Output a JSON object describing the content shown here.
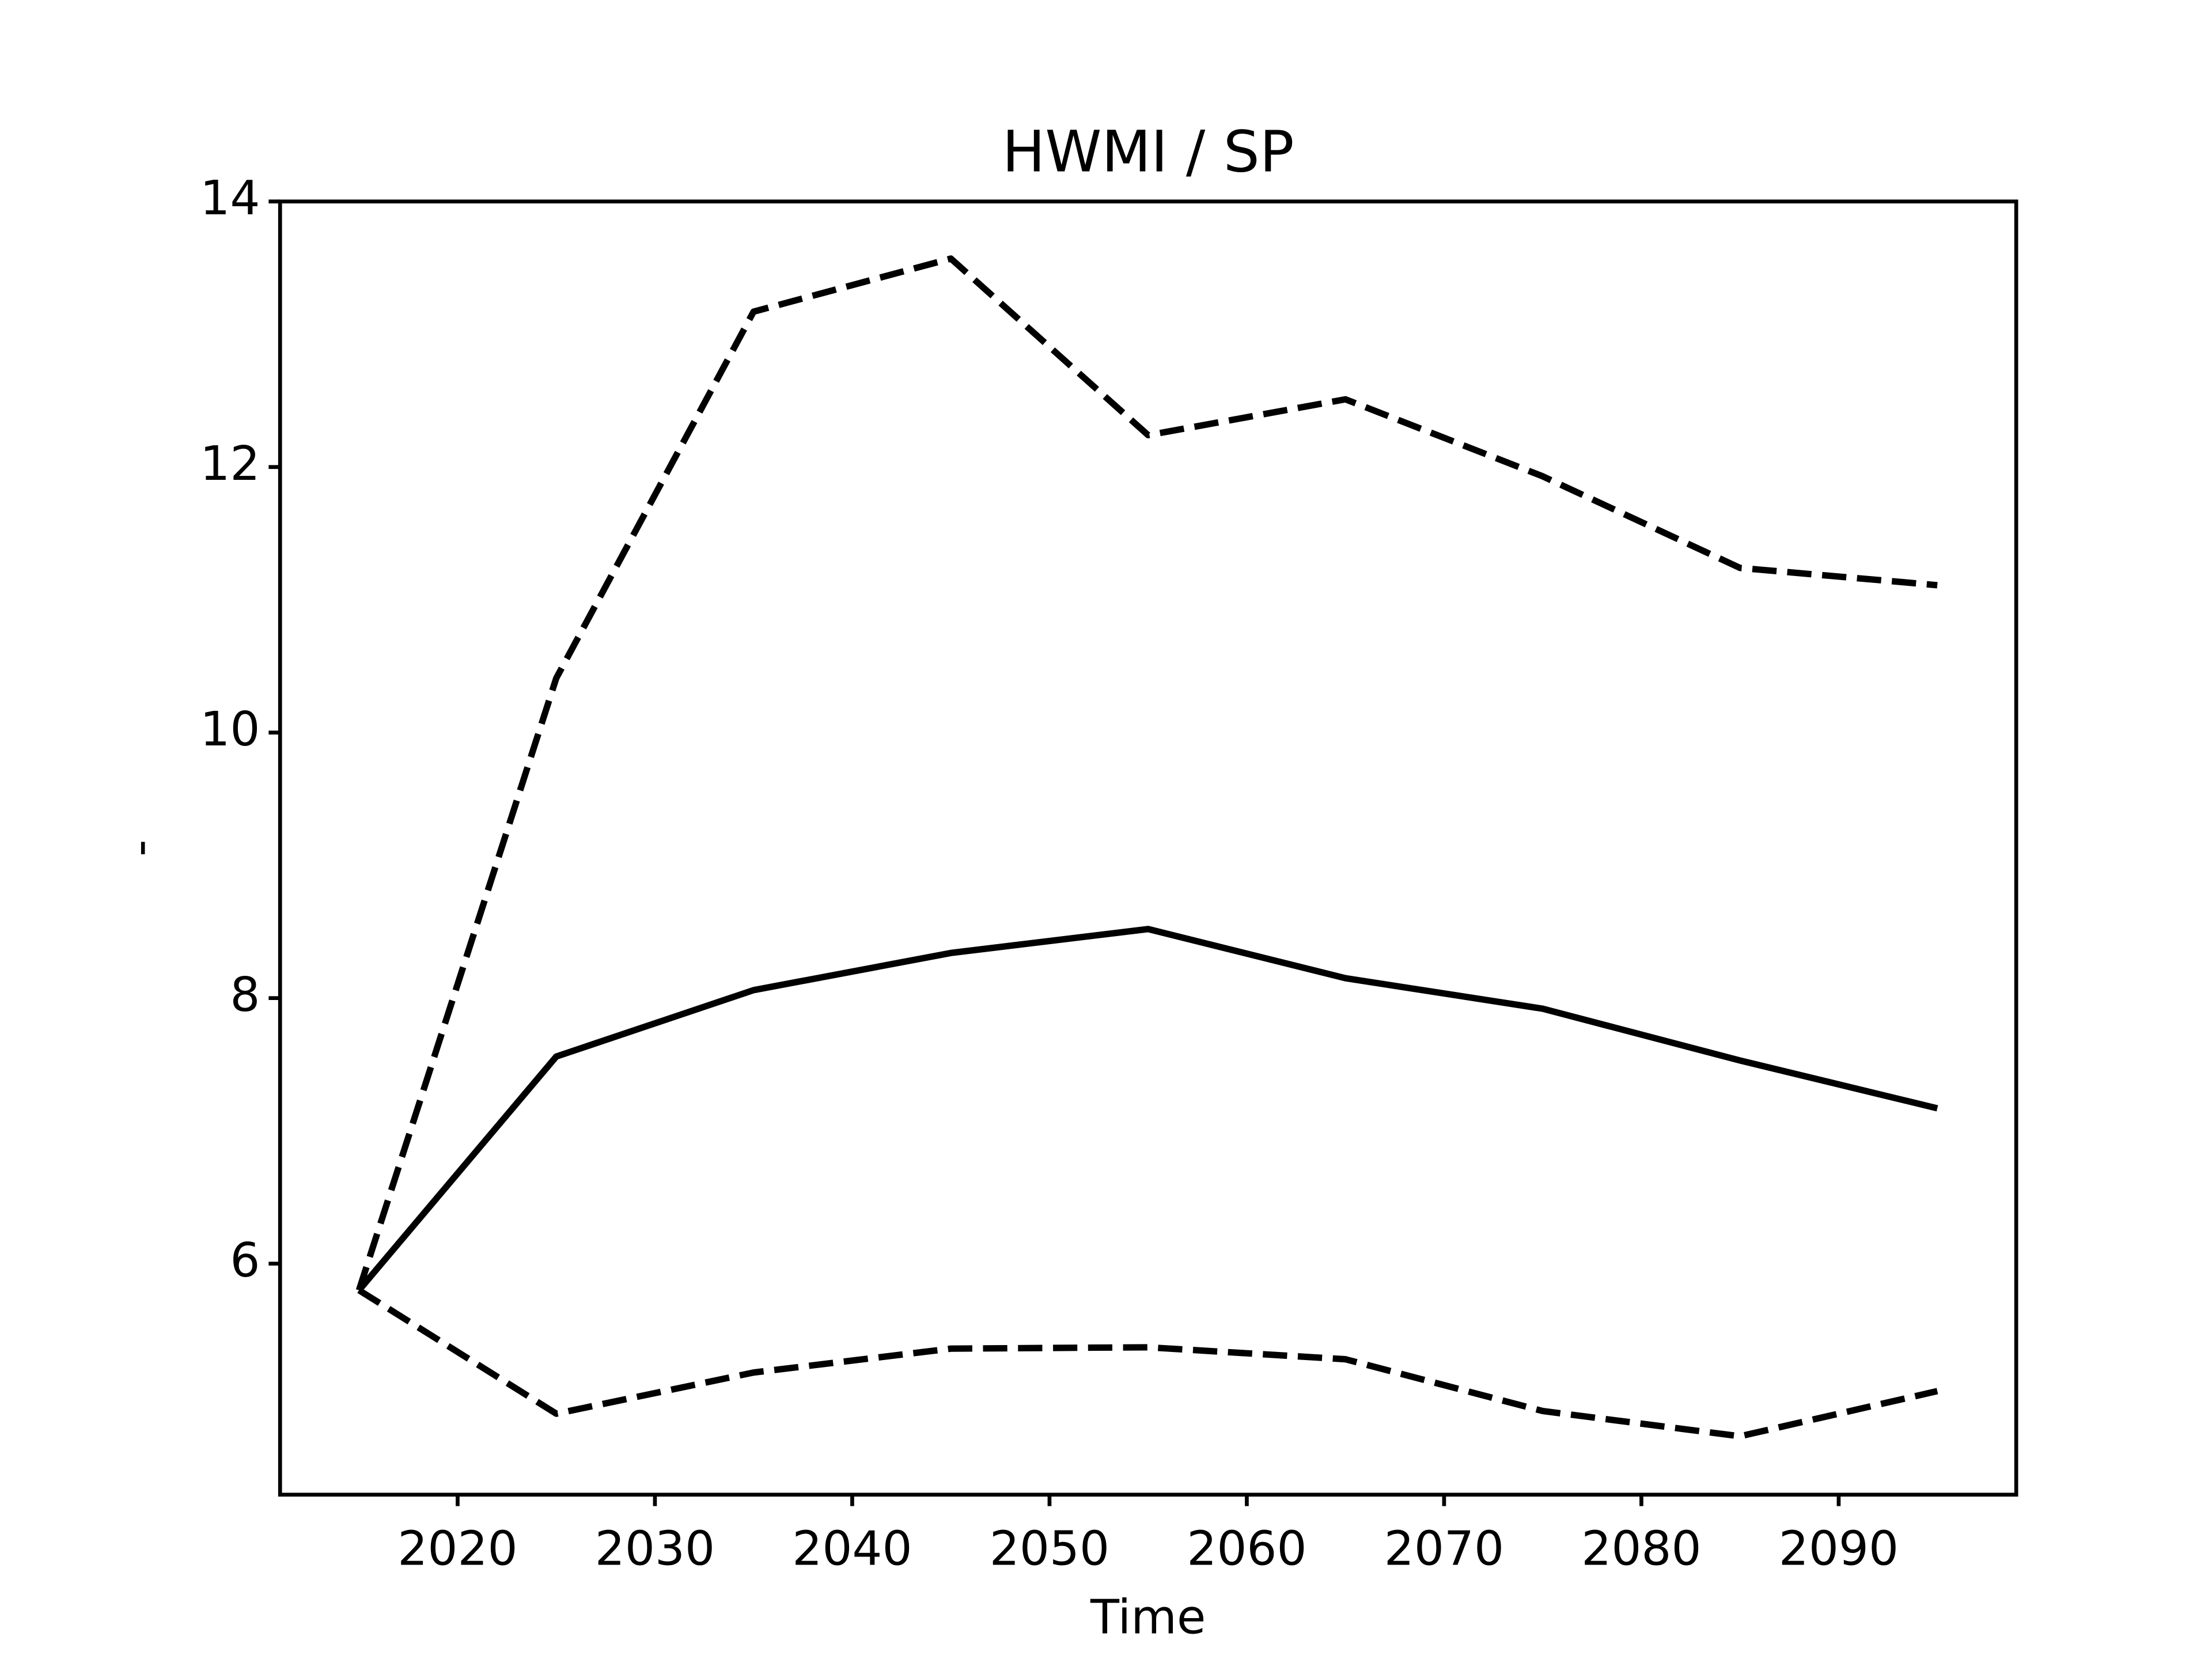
{
  "chart_data": {
    "type": "line",
    "title": "HWMI / SP",
    "xlabel": "Time",
    "ylabel": "-",
    "x": [
      2015,
      2025,
      2035,
      2045,
      2055,
      2065,
      2075,
      2085,
      2095
    ],
    "series": [
      {
        "color": "#000000",
        "linestyle": "solid",
        "values": [
          5.8,
          7.56,
          8.06,
          8.34,
          8.52,
          8.15,
          7.92,
          7.53,
          7.17
        ]
      },
      {
        "color": "#000000",
        "linestyle": "dashed",
        "values": [
          5.8,
          10.41,
          13.17,
          13.57,
          12.24,
          12.51,
          11.93,
          11.24,
          11.11
        ]
      },
      {
        "color": "#000000",
        "linestyle": "dashed",
        "values": [
          5.8,
          4.87,
          5.18,
          5.36,
          5.37,
          5.28,
          4.89,
          4.7,
          5.04
        ]
      }
    ],
    "xlim": [
      2011,
      2099
    ],
    "ylim": [
      4.26,
      14
    ],
    "xticks": [
      2020,
      2030,
      2040,
      2050,
      2060,
      2070,
      2080,
      2090
    ],
    "yticks": [
      6,
      8,
      10,
      12,
      14
    ],
    "grid": false
  }
}
